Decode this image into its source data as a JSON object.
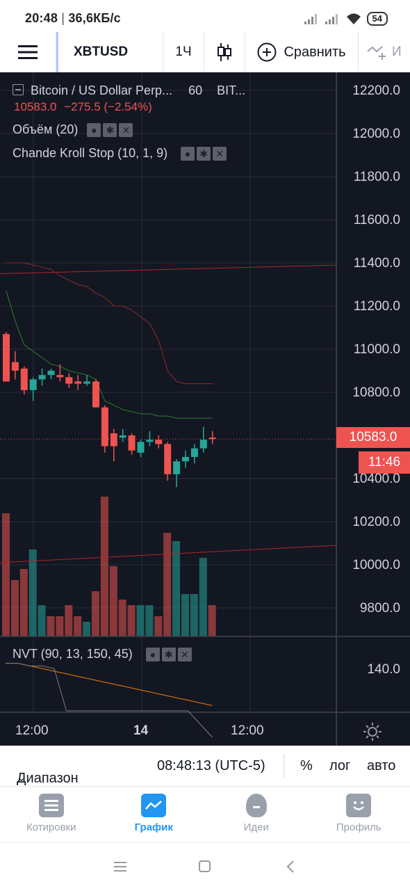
{
  "status_bar": {
    "time": "20:48",
    "speed": "36,6КБ/с",
    "battery": "54"
  },
  "toolbar": {
    "symbol": "XBTUSD",
    "interval": "1Ч",
    "compare_label": "Сравнить",
    "more_label": "И"
  },
  "legend": {
    "title": "Bitcoin / US Dollar Perp...",
    "interval": "60",
    "exchange": "BIT...",
    "last_price": "10583.0",
    "change": "−275.5 (−2.54%)",
    "volume": "Объём (20)",
    "chande": "Chande Kroll Stop (10, 1, 9)",
    "nvt": "NVT (90, 13, 150, 45)"
  },
  "price_axis": [
    "12200.0",
    "12000.0",
    "11800.0",
    "11600.0",
    "11400.0",
    "11200.0",
    "11000.0",
    "10800.0",
    "10400.0",
    "10200.0",
    "10000.0",
    "9800.0"
  ],
  "nvt_axis": "140.0",
  "price_tag": "10583.0",
  "time_tag": "11:46",
  "time_axis": {
    "t1": "12:00",
    "t2": "14",
    "t3": "12:00"
  },
  "range_bar": {
    "date_range": "Диапазон дат",
    "clock": "08:48:13 (UTC-5)",
    "percent": "%",
    "log": "лог",
    "auto": "авто"
  },
  "bottom_nav": {
    "quotes": "Котировки",
    "chart": "График",
    "ideas": "Идеи",
    "profile": "Профиль"
  },
  "colors": {
    "up": "#26a69a",
    "down": "#ef5350",
    "background": "#131722",
    "accent": "#2196f3"
  },
  "chart_data": {
    "type": "candlestick",
    "symbol": "XBTUSD",
    "interval": "60",
    "candles": [
      {
        "o": 11070,
        "h": 11080,
        "l": 10850,
        "c": 10850
      },
      {
        "o": 10940,
        "h": 10990,
        "l": 10860,
        "c": 10900
      },
      {
        "o": 10910,
        "h": 10920,
        "l": 10790,
        "c": 10810
      },
      {
        "o": 10810,
        "h": 10870,
        "l": 10760,
        "c": 10860
      },
      {
        "o": 10860,
        "h": 10910,
        "l": 10830,
        "c": 10880
      },
      {
        "o": 10880,
        "h": 10910,
        "l": 10860,
        "c": 10900
      },
      {
        "o": 10880,
        "h": 10930,
        "l": 10850,
        "c": 10870
      },
      {
        "o": 10870,
        "h": 10890,
        "l": 10820,
        "c": 10840
      },
      {
        "o": 10850,
        "h": 10880,
        "l": 10810,
        "c": 10840
      },
      {
        "o": 10840,
        "h": 10880,
        "l": 10830,
        "c": 10850
      },
      {
        "o": 10850,
        "h": 10860,
        "l": 10730,
        "c": 10730
      },
      {
        "o": 10730,
        "h": 10740,
        "l": 10520,
        "c": 10550
      },
      {
        "o": 10610,
        "h": 10630,
        "l": 10480,
        "c": 10550
      },
      {
        "o": 10590,
        "h": 10630,
        "l": 10570,
        "c": 10600
      },
      {
        "o": 10600,
        "h": 10610,
        "l": 10510,
        "c": 10530
      },
      {
        "o": 10520,
        "h": 10580,
        "l": 10500,
        "c": 10570
      },
      {
        "o": 10570,
        "h": 10620,
        "l": 10550,
        "c": 10580
      },
      {
        "o": 10580,
        "h": 10600,
        "l": 10540,
        "c": 10560
      },
      {
        "o": 10560,
        "h": 10570,
        "l": 10390,
        "c": 10420
      },
      {
        "o": 10420,
        "h": 10490,
        "l": 10360,
        "c": 10480
      },
      {
        "o": 10480,
        "h": 10530,
        "l": 10450,
        "c": 10500
      },
      {
        "o": 10500,
        "h": 10560,
        "l": 10470,
        "c": 10540
      },
      {
        "o": 10540,
        "h": 10640,
        "l": 10520,
        "c": 10580
      },
      {
        "o": 10590,
        "h": 10620,
        "l": 10560,
        "c": 10583
      }
    ],
    "volume_up": [
      false,
      false,
      false,
      true,
      true,
      false,
      false,
      false,
      false,
      true,
      false,
      false,
      false,
      false,
      false,
      true,
      true,
      false,
      false,
      true,
      true,
      true,
      true,
      false
    ],
    "volume_height": [
      0.44,
      0.2,
      0.24,
      0.31,
      0.11,
      0.07,
      0.07,
      0.11,
      0.07,
      0.05,
      0.16,
      0.5,
      0.25,
      0.13,
      0.11,
      0.11,
      0.11,
      0.07,
      0.37,
      0.34,
      0.15,
      0.15,
      0.28,
      0.11
    ],
    "chande_stop_long": [
      11270,
      11130,
      11020,
      10990,
      10960,
      10930,
      10920,
      10900,
      10890,
      10880,
      10860,
      10760,
      10740,
      10720,
      10710,
      10700,
      10700,
      10690,
      10690,
      10680,
      10680,
      10680,
      10680,
      10680
    ],
    "chande_stop_short": [
      11400,
      11400,
      11400,
      11390,
      11380,
      11370,
      11340,
      11320,
      11300,
      11290,
      11260,
      11240,
      11200,
      11200,
      11180,
      11150,
      11120,
      11040,
      10900,
      10850,
      10840,
      10840,
      10840,
      10840
    ],
    "trend_upper": [
      11350,
      11390
    ],
    "trend_lower": [
      10010,
      10090
    ],
    "nvt_series_orange": [
      148,
      148,
      147,
      146,
      145,
      144,
      143,
      142,
      141,
      140,
      139,
      138,
      137,
      136,
      135,
      134,
      133,
      132
    ],
    "nvt_series_gray": [
      148,
      148,
      147,
      147,
      146,
      130,
      130,
      130,
      130,
      130,
      130,
      130,
      130,
      130,
      130,
      130,
      125,
      120
    ],
    "y_axis_min": 9700,
    "y_axis_max": 12300
  }
}
